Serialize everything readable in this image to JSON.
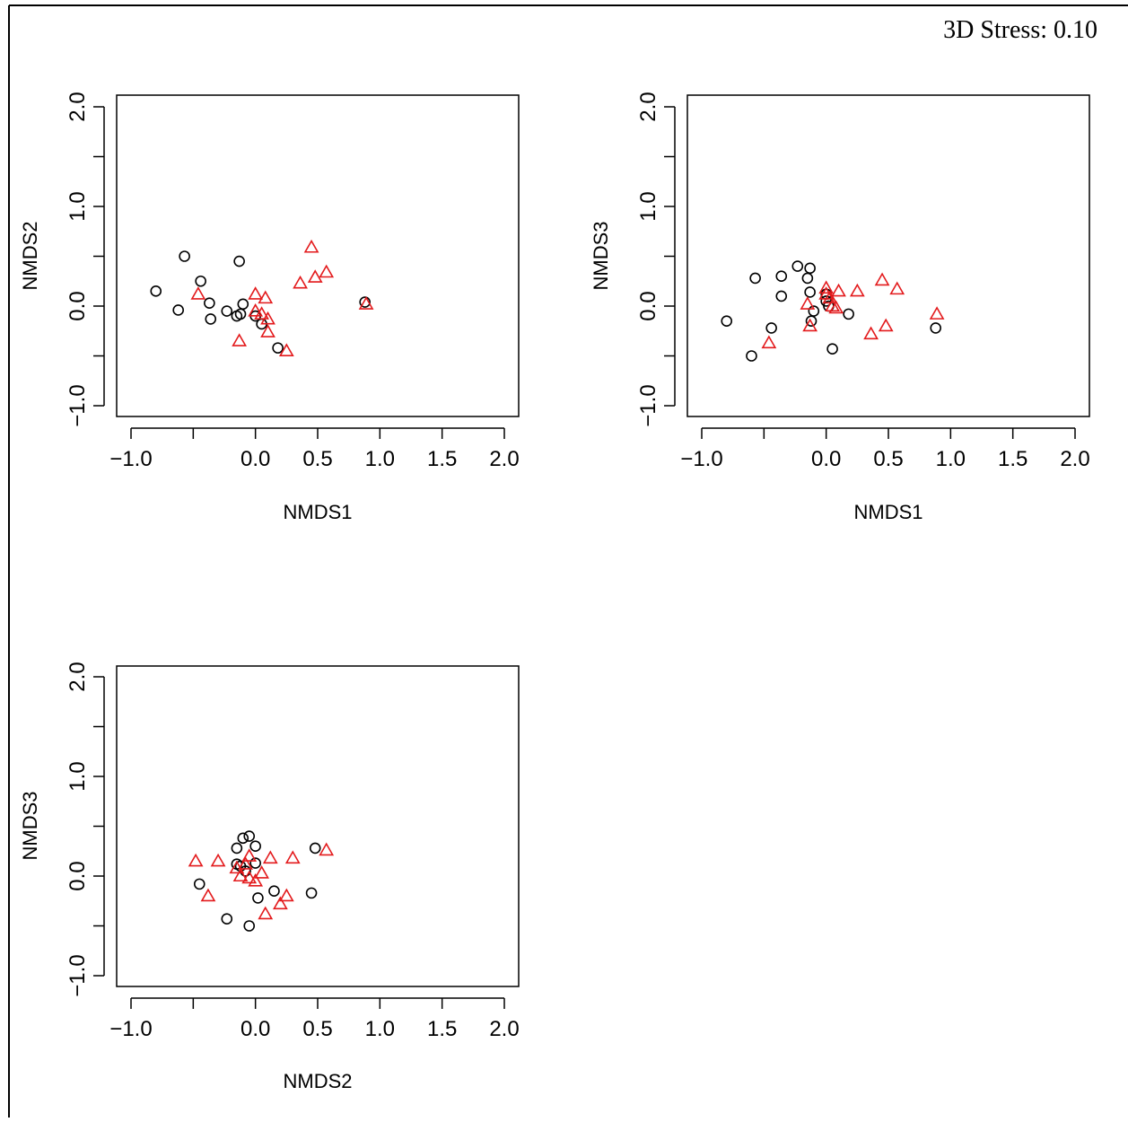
{
  "stress_label": "3D Stress: 0.10",
  "colors": {
    "group_a": "#000000",
    "group_b": "#e31a1c"
  },
  "chart_data": [
    {
      "type": "scatter",
      "xlabel": "NMDS1",
      "ylabel": "NMDS2",
      "xlim": [
        -1.1,
        2.1
      ],
      "ylim": [
        -1.1,
        2.1
      ],
      "xticks": [
        -1.0,
        -0.5,
        0.0,
        0.5,
        1.0,
        1.5,
        2.0
      ],
      "xtick_labels": [
        "-1.0",
        "",
        "0.0",
        "0.5",
        "1.0",
        "1.5",
        "2.0"
      ],
      "yticks": [
        -1.0,
        -0.5,
        0.0,
        0.5,
        1.0,
        1.5,
        2.0
      ],
      "ytick_labels": [
        "-1.0",
        "",
        "0.0",
        "",
        "1.0",
        "",
        "2.0"
      ],
      "series": [
        {
          "marker": "circle",
          "color": "#000000",
          "points": [
            [
              -0.8,
              0.15
            ],
            [
              -0.57,
              0.5
            ],
            [
              -0.44,
              0.25
            ],
            [
              -0.62,
              -0.04
            ],
            [
              -0.37,
              0.03
            ],
            [
              -0.36,
              -0.13
            ],
            [
              -0.23,
              -0.05
            ],
            [
              -0.15,
              -0.1
            ],
            [
              -0.12,
              -0.08
            ],
            [
              -0.13,
              0.45
            ],
            [
              -0.1,
              0.02
            ],
            [
              0.0,
              -0.1
            ],
            [
              0.05,
              -0.18
            ],
            [
              0.18,
              -0.42
            ],
            [
              0.88,
              0.04
            ]
          ]
        },
        {
          "marker": "triangle",
          "color": "#e31a1c",
          "points": [
            [
              -0.46,
              0.12
            ],
            [
              -0.13,
              -0.35
            ],
            [
              0.0,
              0.12
            ],
            [
              0.0,
              -0.05
            ],
            [
              0.05,
              -0.08
            ],
            [
              0.08,
              0.08
            ],
            [
              0.1,
              -0.13
            ],
            [
              0.1,
              -0.26
            ],
            [
              0.25,
              -0.45
            ],
            [
              0.36,
              0.23
            ],
            [
              0.45,
              0.59
            ],
            [
              0.48,
              0.29
            ],
            [
              0.57,
              0.34
            ],
            [
              0.89,
              0.02
            ]
          ]
        }
      ]
    },
    {
      "type": "scatter",
      "xlabel": "NMDS1",
      "ylabel": "NMDS3",
      "xlim": [
        -1.1,
        2.1
      ],
      "ylim": [
        -1.1,
        2.1
      ],
      "xticks": [
        -1.0,
        -0.5,
        0.0,
        0.5,
        1.0,
        1.5,
        2.0
      ],
      "xtick_labels": [
        "-1.0",
        "",
        "0.0",
        "0.5",
        "1.0",
        "1.5",
        "2.0"
      ],
      "yticks": [
        -1.0,
        -0.5,
        0.0,
        0.5,
        1.0,
        1.5,
        2.0
      ],
      "ytick_labels": [
        "-1.0",
        "",
        "0.0",
        "",
        "1.0",
        "",
        "2.0"
      ],
      "series": [
        {
          "marker": "circle",
          "color": "#000000",
          "points": [
            [
              -0.8,
              -0.15
            ],
            [
              -0.6,
              -0.5
            ],
            [
              -0.57,
              0.28
            ],
            [
              -0.44,
              -0.22
            ],
            [
              -0.36,
              0.3
            ],
            [
              -0.36,
              0.1
            ],
            [
              -0.23,
              0.4
            ],
            [
              -0.15,
              0.28
            ],
            [
              -0.13,
              0.38
            ],
            [
              -0.13,
              0.14
            ],
            [
              -0.12,
              -0.15
            ],
            [
              -0.1,
              -0.05
            ],
            [
              0.0,
              0.12
            ],
            [
              0.0,
              0.05
            ],
            [
              0.02,
              0.0
            ],
            [
              0.05,
              -0.43
            ],
            [
              0.18,
              -0.08
            ],
            [
              0.88,
              -0.22
            ]
          ]
        },
        {
          "marker": "triangle",
          "color": "#e31a1c",
          "points": [
            [
              -0.46,
              -0.37
            ],
            [
              -0.15,
              0.02
            ],
            [
              -0.13,
              -0.2
            ],
            [
              0.0,
              0.18
            ],
            [
              0.0,
              0.12
            ],
            [
              0.03,
              0.08
            ],
            [
              0.05,
              0.0
            ],
            [
              0.08,
              -0.02
            ],
            [
              0.1,
              0.15
            ],
            [
              0.25,
              0.15
            ],
            [
              0.36,
              -0.28
            ],
            [
              0.45,
              0.26
            ],
            [
              0.48,
              -0.2
            ],
            [
              0.57,
              0.17
            ],
            [
              0.89,
              -0.08
            ]
          ]
        }
      ]
    },
    {
      "type": "scatter",
      "xlabel": "NMDS2",
      "ylabel": "NMDS3",
      "xlim": [
        -1.1,
        2.1
      ],
      "ylim": [
        -1.1,
        2.1
      ],
      "xticks": [
        -1.0,
        -0.5,
        0.0,
        0.5,
        1.0,
        1.5,
        2.0
      ],
      "xtick_labels": [
        "-1.0",
        "",
        "0.0",
        "0.5",
        "1.0",
        "1.5",
        "2.0"
      ],
      "yticks": [
        -1.0,
        -0.5,
        0.0,
        0.5,
        1.0,
        1.5,
        2.0
      ],
      "ytick_labels": [
        "-1.0",
        "",
        "0.0",
        "",
        "1.0",
        "",
        "2.0"
      ],
      "series": [
        {
          "marker": "circle",
          "color": "#000000",
          "points": [
            [
              -0.45,
              -0.08
            ],
            [
              -0.23,
              -0.43
            ],
            [
              -0.15,
              0.28
            ],
            [
              -0.12,
              0.1
            ],
            [
              -0.1,
              0.38
            ],
            [
              -0.05,
              0.4
            ],
            [
              -0.05,
              -0.5
            ],
            [
              0.0,
              0.3
            ],
            [
              0.0,
              0.13
            ],
            [
              0.02,
              -0.22
            ],
            [
              0.15,
              -0.15
            ],
            [
              0.45,
              -0.17
            ],
            [
              0.48,
              0.28
            ],
            [
              -0.15,
              0.12
            ],
            [
              -0.08,
              0.05
            ]
          ]
        },
        {
          "marker": "triangle",
          "color": "#e31a1c",
          "points": [
            [
              -0.48,
              0.15
            ],
            [
              -0.38,
              -0.2
            ],
            [
              -0.3,
              0.15
            ],
            [
              -0.15,
              0.08
            ],
            [
              -0.12,
              0.0
            ],
            [
              -0.08,
              0.12
            ],
            [
              -0.05,
              0.2
            ],
            [
              -0.05,
              -0.02
            ],
            [
              0.0,
              -0.05
            ],
            [
              0.05,
              0.03
            ],
            [
              0.08,
              -0.38
            ],
            [
              0.12,
              0.18
            ],
            [
              0.2,
              -0.28
            ],
            [
              0.25,
              -0.2
            ],
            [
              0.3,
              0.18
            ],
            [
              0.57,
              0.26
            ]
          ]
        }
      ]
    }
  ]
}
